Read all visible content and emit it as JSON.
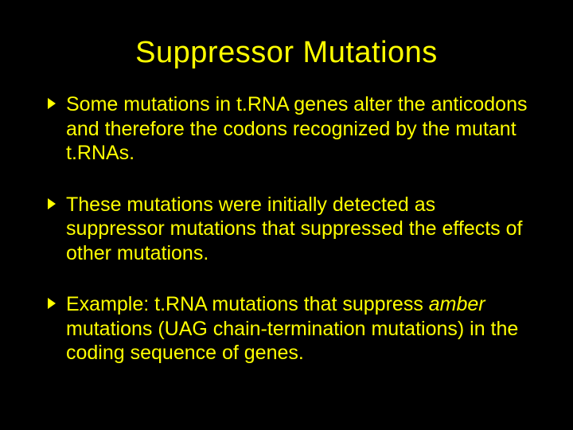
{
  "slide": {
    "title": "Suppressor Mutations",
    "bullets": [
      {
        "text": "Some mutations in t.RNA genes alter the anticodons and therefore the codons recognized by the mutant t.RNAs."
      },
      {
        "text": "These mutations were initially detected as suppressor mutations that suppressed the effects of other mutations."
      },
      {
        "prefix": "Example: t.RNA mutations that suppress ",
        "italic": "amber",
        "suffix": " mutations (UAG chain-termination mutations) in the coding sequence of genes."
      }
    ],
    "colors": {
      "background": "#000000",
      "text": "#ffff00",
      "bullet_marker": "#ffff00"
    },
    "typography": {
      "title_fontsize": 38,
      "body_fontsize": 25,
      "font_family": "Arial"
    }
  }
}
